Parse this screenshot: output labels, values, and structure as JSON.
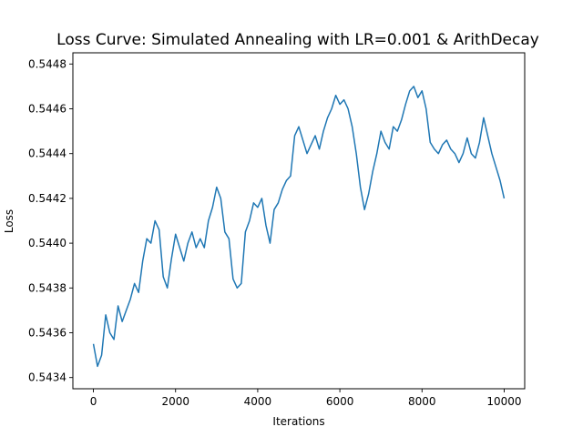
{
  "chart_data": {
    "type": "line",
    "title": "Loss Curve: Simulated Annealing with LR=0.001 & ArithDecay",
    "xlabel": "Iterations",
    "ylabel": "Loss",
    "xlim": [
      -500,
      10500
    ],
    "ylim": [
      0.54335,
      0.54485
    ],
    "x_ticks": [
      0,
      2000,
      4000,
      6000,
      8000,
      10000
    ],
    "x_tick_labels": [
      "0",
      "2000",
      "4000",
      "6000",
      "8000",
      "10000"
    ],
    "y_ticks": [
      0.5434,
      0.5436,
      0.5438,
      0.544,
      0.5442,
      0.5444,
      0.5446,
      0.5448
    ],
    "y_tick_labels": [
      "0.5434",
      "0.5436",
      "0.5438",
      "0.5440",
      "0.5442",
      "0.5444",
      "0.5446",
      "0.5448"
    ],
    "grid": false,
    "legend": "none",
    "series": [
      {
        "color": "#1f77b4",
        "x": [
          0,
          100,
          200,
          300,
          400,
          500,
          600,
          700,
          800,
          900,
          1000,
          1100,
          1200,
          1300,
          1400,
          1500,
          1600,
          1700,
          1800,
          1900,
          2000,
          2100,
          2200,
          2300,
          2400,
          2500,
          2600,
          2700,
          2800,
          2900,
          3000,
          3100,
          3200,
          3300,
          3400,
          3500,
          3600,
          3700,
          3800,
          3900,
          4000,
          4100,
          4200,
          4300,
          4400,
          4500,
          4600,
          4700,
          4800,
          4900,
          5000,
          5100,
          5200,
          5300,
          5400,
          5500,
          5600,
          5700,
          5800,
          5900,
          6000,
          6100,
          6200,
          6300,
          6400,
          6500,
          6600,
          6700,
          6800,
          6900,
          7000,
          7100,
          7200,
          7300,
          7400,
          7500,
          7600,
          7700,
          7800,
          7900,
          8000,
          8100,
          8200,
          8300,
          8400,
          8500,
          8600,
          8700,
          8800,
          8900,
          9000,
          9100,
          9200,
          9300,
          9400,
          9500,
          9600,
          9700,
          9800,
          9900,
          10000
        ],
        "y": [
          0.54355,
          0.54345,
          0.5435,
          0.54368,
          0.5436,
          0.54357,
          0.54372,
          0.54365,
          0.5437,
          0.54375,
          0.54382,
          0.54378,
          0.54392,
          0.54402,
          0.544,
          0.5441,
          0.54406,
          0.54385,
          0.5438,
          0.54393,
          0.54404,
          0.54398,
          0.54392,
          0.544,
          0.54405,
          0.54398,
          0.54402,
          0.54398,
          0.5441,
          0.54416,
          0.54425,
          0.5442,
          0.54405,
          0.54402,
          0.54384,
          0.5438,
          0.54382,
          0.54405,
          0.5441,
          0.54418,
          0.54416,
          0.5442,
          0.54408,
          0.544,
          0.54415,
          0.54418,
          0.54424,
          0.54428,
          0.5443,
          0.54448,
          0.54452,
          0.54446,
          0.5444,
          0.54444,
          0.54448,
          0.54442,
          0.5445,
          0.54456,
          0.5446,
          0.54466,
          0.54462,
          0.54464,
          0.5446,
          0.54452,
          0.5444,
          0.54425,
          0.54415,
          0.54422,
          0.54432,
          0.5444,
          0.5445,
          0.54445,
          0.54442,
          0.54452,
          0.5445,
          0.54455,
          0.54462,
          0.54468,
          0.5447,
          0.54465,
          0.54468,
          0.5446,
          0.54445,
          0.54442,
          0.5444,
          0.54444,
          0.54446,
          0.54442,
          0.5444,
          0.54436,
          0.5444,
          0.54447,
          0.5444,
          0.54438,
          0.54445,
          0.54456,
          0.54448,
          0.5444,
          0.54434,
          0.54428,
          0.5442
        ]
      }
    ]
  }
}
